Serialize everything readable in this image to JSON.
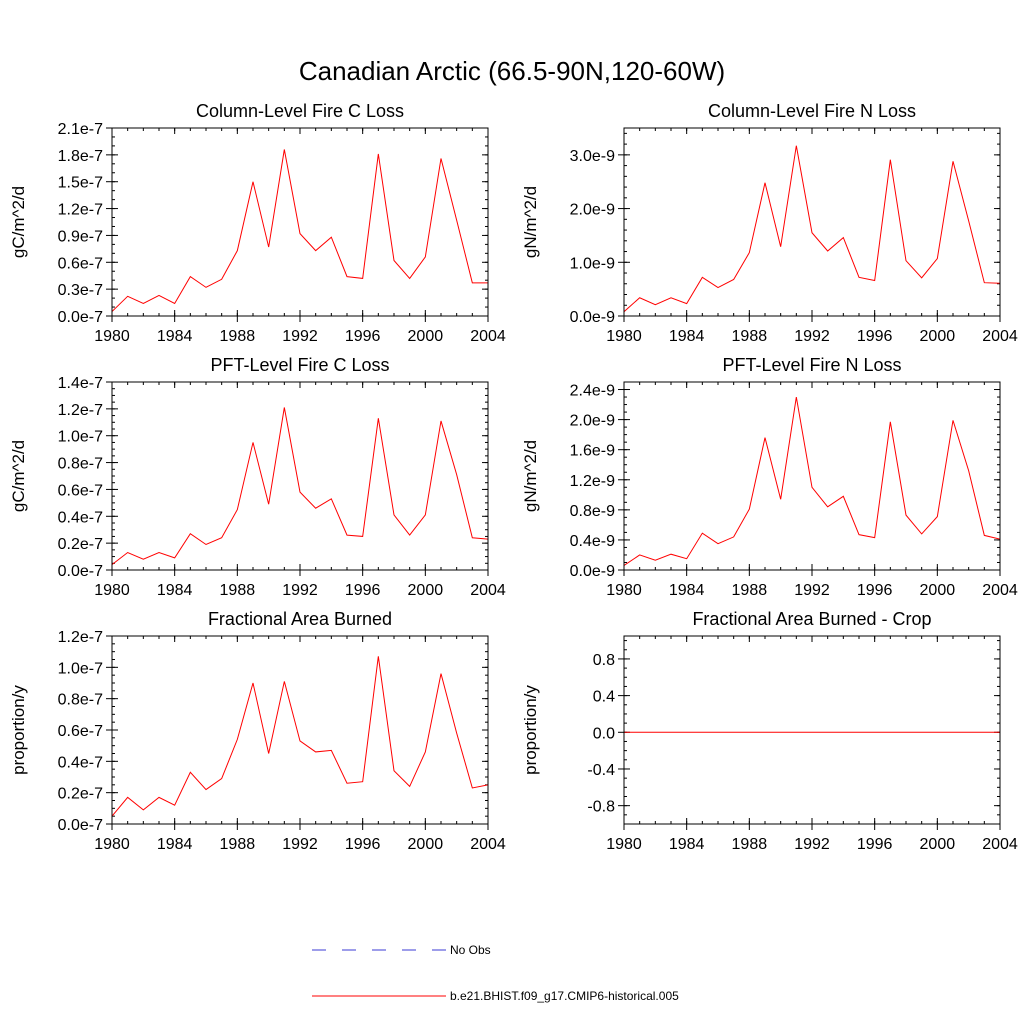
{
  "page_title": "Canadian Arctic (66.5-90N,120-60W)",
  "colors": {
    "model_line": "#ff0000",
    "obs_line": "#3b3bd6",
    "axes": "#000000"
  },
  "legend": {
    "obs_label": "No Obs",
    "model_label": "b.e21.BHIST.f09_g17.CMIP6-historical.005"
  },
  "chart_data": [
    {
      "type": "line",
      "title": "Column-Level Fire C Loss",
      "ylabel": "gC/m^2/d",
      "xlabel": "",
      "xlim": [
        1980,
        2004
      ],
      "ylim": [
        0,
        2.1e-07
      ],
      "x_ticks": [
        1980,
        1984,
        1988,
        1992,
        1996,
        2000,
        2004
      ],
      "x_tick_labels": [
        "1980",
        "1984",
        "1988",
        "1992",
        "1996",
        "2000",
        "2004"
      ],
      "y_ticks": [
        0,
        3e-08,
        6e-08,
        9e-08,
        1.2e-07,
        1.5e-07,
        1.8e-07,
        2.1e-07
      ],
      "y_tick_labels": [
        "0.0e-7",
        "0.3e-7",
        "0.6e-7",
        "0.9e-7",
        "1.2e-7",
        "1.5e-7",
        "1.8e-7",
        "2.1e-7"
      ],
      "y_minor_step": 1e-08,
      "x": [
        1980,
        1981,
        1982,
        1983,
        1984,
        1985,
        1986,
        1987,
        1988,
        1989,
        1990,
        1991,
        1992,
        1993,
        1994,
        1995,
        1996,
        1997,
        1998,
        1999,
        2000,
        2001,
        2002,
        2003,
        2004
      ],
      "series": [
        {
          "name": "b.e21.BHIST.f09_g17.CMIP6-historical.005",
          "values": [
            5e-09,
            2.2e-08,
            1.4e-08,
            2.3e-08,
            1.4e-08,
            4.4e-08,
            3.2e-08,
            4.1e-08,
            7.3e-08,
            1.5e-07,
            7.7e-08,
            1.86e-07,
            9.2e-08,
            7.3e-08,
            8.8e-08,
            4.4e-08,
            4.2e-08,
            1.81e-07,
            6.2e-08,
            4.2e-08,
            6.6e-08,
            1.76e-07,
            1.07e-07,
            3.7e-08,
            3.7e-08
          ]
        }
      ]
    },
    {
      "type": "line",
      "title": "Column-Level Fire N Loss",
      "ylabel": "gN/m^2/d",
      "xlabel": "",
      "xlim": [
        1980,
        2004
      ],
      "ylim": [
        0,
        3.5e-09
      ],
      "x_ticks": [
        1980,
        1984,
        1988,
        1992,
        1996,
        2000,
        2004
      ],
      "x_tick_labels": [
        "1980",
        "1984",
        "1988",
        "1992",
        "1996",
        "2000",
        "2004"
      ],
      "y_ticks": [
        0,
        1e-09,
        2e-09,
        3e-09
      ],
      "y_tick_labels": [
        "0.0e-9",
        "1.0e-9",
        "2.0e-9",
        "3.0e-9"
      ],
      "y_minor_step": 2e-10,
      "x": [
        1980,
        1981,
        1982,
        1983,
        1984,
        1985,
        1986,
        1987,
        1988,
        1989,
        1990,
        1991,
        1992,
        1993,
        1994,
        1995,
        1996,
        1997,
        1998,
        1999,
        2000,
        2001,
        2002,
        2003,
        2004
      ],
      "series": [
        {
          "name": "b.e21.BHIST.f09_g17.CMIP6-historical.005",
          "values": [
            8e-11,
            3.4e-10,
            2.1e-10,
            3.4e-10,
            2.3e-10,
            7.2e-10,
            5.3e-10,
            6.8e-10,
            1.18e-09,
            2.48e-09,
            1.29e-09,
            3.17e-09,
            1.55e-09,
            1.21e-09,
            1.46e-09,
            7.2e-10,
            6.6e-10,
            2.91e-09,
            1.03e-09,
            7.1e-10,
            1.07e-09,
            2.88e-09,
            1.77e-09,
            6.2e-10,
            6.1e-10
          ]
        }
      ]
    },
    {
      "type": "line",
      "title": "PFT-Level Fire C Loss",
      "ylabel": "gC/m^2/d",
      "xlabel": "",
      "xlim": [
        1980,
        2004
      ],
      "ylim": [
        0,
        1.4e-07
      ],
      "x_ticks": [
        1980,
        1984,
        1988,
        1992,
        1996,
        2000,
        2004
      ],
      "x_tick_labels": [
        "1980",
        "1984",
        "1988",
        "1992",
        "1996",
        "2000",
        "2004"
      ],
      "y_ticks": [
        0,
        2e-08,
        4e-08,
        6e-08,
        8e-08,
        1e-07,
        1.2e-07,
        1.4e-07
      ],
      "y_tick_labels": [
        "0.0e-7",
        "0.2e-7",
        "0.4e-7",
        "0.6e-7",
        "0.8e-7",
        "1.0e-7",
        "1.2e-7",
        "1.4e-7"
      ],
      "y_minor_step": 5e-09,
      "x": [
        1980,
        1981,
        1982,
        1983,
        1984,
        1985,
        1986,
        1987,
        1988,
        1989,
        1990,
        1991,
        1992,
        1993,
        1994,
        1995,
        1996,
        1997,
        1998,
        1999,
        2000,
        2001,
        2002,
        2003,
        2004
      ],
      "series": [
        {
          "name": "b.e21.BHIST.f09_g17.CMIP6-historical.005",
          "values": [
            4e-09,
            1.3e-08,
            8e-09,
            1.3e-08,
            9e-09,
            2.7e-08,
            1.9e-08,
            2.4e-08,
            4.5e-08,
            9.5e-08,
            4.9e-08,
            1.21e-07,
            5.8e-08,
            4.6e-08,
            5.3e-08,
            2.6e-08,
            2.5e-08,
            1.13e-07,
            4.1e-08,
            2.6e-08,
            4.1e-08,
            1.11e-07,
            7.1e-08,
            2.4e-08,
            2.3e-08
          ]
        }
      ]
    },
    {
      "type": "line",
      "title": "PFT-Level Fire N Loss",
      "ylabel": "gN/m^2/d",
      "xlabel": "",
      "xlim": [
        1980,
        2004
      ],
      "ylim": [
        0,
        2.5e-09
      ],
      "x_ticks": [
        1980,
        1984,
        1988,
        1992,
        1996,
        2000,
        2004
      ],
      "x_tick_labels": [
        "1980",
        "1984",
        "1988",
        "1992",
        "1996",
        "2000",
        "2004"
      ],
      "y_ticks": [
        0,
        4e-10,
        8e-10,
        1.2e-09,
        1.6e-09,
        2e-09,
        2.4e-09
      ],
      "y_tick_labels": [
        "0.0e-9",
        "0.4e-9",
        "0.8e-9",
        "1.2e-9",
        "1.6e-9",
        "2.0e-9",
        "2.4e-9"
      ],
      "y_minor_step": 1e-10,
      "x": [
        1980,
        1981,
        1982,
        1983,
        1984,
        1985,
        1986,
        1987,
        1988,
        1989,
        1990,
        1991,
        1992,
        1993,
        1994,
        1995,
        1996,
        1997,
        1998,
        1999,
        2000,
        2001,
        2002,
        2003,
        2004
      ],
      "series": [
        {
          "name": "b.e21.BHIST.f09_g17.CMIP6-historical.005",
          "values": [
            6e-11,
            2e-10,
            1.3e-10,
            2.1e-10,
            1.5e-10,
            4.9e-10,
            3.5e-10,
            4.4e-10,
            8.1e-10,
            1.76e-09,
            9.4e-10,
            2.3e-09,
            1.1e-09,
            8.4e-10,
            9.8e-10,
            4.7e-10,
            4.3e-10,
            1.97e-09,
            7.3e-10,
            4.8e-10,
            7.1e-10,
            1.99e-09,
            1.32e-09,
            4.6e-10,
            4.1e-10
          ]
        }
      ]
    },
    {
      "type": "line",
      "title": "Fractional Area Burned",
      "ylabel": "proportion/y",
      "xlabel": "",
      "xlim": [
        1980,
        2004
      ],
      "ylim": [
        0,
        1.2e-07
      ],
      "x_ticks": [
        1980,
        1984,
        1988,
        1992,
        1996,
        2000,
        2004
      ],
      "x_tick_labels": [
        "1980",
        "1984",
        "1988",
        "1992",
        "1996",
        "2000",
        "2004"
      ],
      "y_ticks": [
        0,
        2e-08,
        4e-08,
        6e-08,
        8e-08,
        1e-07,
        1.2e-07
      ],
      "y_tick_labels": [
        "0.0e-7",
        "0.2e-7",
        "0.4e-7",
        "0.6e-7",
        "0.8e-7",
        "1.0e-7",
        "1.2e-7"
      ],
      "y_minor_step": 5e-09,
      "x": [
        1980,
        1981,
        1982,
        1983,
        1984,
        1985,
        1986,
        1987,
        1988,
        1989,
        1990,
        1991,
        1992,
        1993,
        1994,
        1995,
        1996,
        1997,
        1998,
        1999,
        2000,
        2001,
        2002,
        2003,
        2004
      ],
      "series": [
        {
          "name": "b.e21.BHIST.f09_g17.CMIP6-historical.005",
          "values": [
            5e-09,
            1.7e-08,
            9e-09,
            1.7e-08,
            1.2e-08,
            3.3e-08,
            2.2e-08,
            2.9e-08,
            5.4e-08,
            9e-08,
            4.5e-08,
            9.1e-08,
            5.3e-08,
            4.6e-08,
            4.7e-08,
            2.6e-08,
            2.7e-08,
            1.07e-07,
            3.4e-08,
            2.4e-08,
            4.6e-08,
            9.6e-08,
            5.8e-08,
            2.3e-08,
            2.5e-08
          ]
        }
      ]
    },
    {
      "type": "line",
      "title": "Fractional Area Burned - Crop",
      "ylabel": "proportion/y",
      "xlabel": "",
      "xlim": [
        1980,
        2004
      ],
      "ylim": [
        -1.0,
        1.05
      ],
      "x_ticks": [
        1980,
        1984,
        1988,
        1992,
        1996,
        2000,
        2004
      ],
      "x_tick_labels": [
        "1980",
        "1984",
        "1988",
        "1992",
        "1996",
        "2000",
        "2004"
      ],
      "y_ticks": [
        -0.8,
        -0.4,
        0,
        0.4,
        0.8
      ],
      "y_tick_labels": [
        "-0.8",
        "-0.4",
        "0.0",
        "0.4",
        "0.8"
      ],
      "y_minor_step": 0.1,
      "x": [
        1980,
        1981,
        1982,
        1983,
        1984,
        1985,
        1986,
        1987,
        1988,
        1989,
        1990,
        1991,
        1992,
        1993,
        1994,
        1995,
        1996,
        1997,
        1998,
        1999,
        2000,
        2001,
        2002,
        2003,
        2004
      ],
      "series": [
        {
          "name": "b.e21.BHIST.f09_g17.CMIP6-historical.005",
          "values": [
            0,
            0,
            0,
            0,
            0,
            0,
            0,
            0,
            0,
            0,
            0,
            0,
            0,
            0,
            0,
            0,
            0,
            0,
            0,
            0,
            0,
            0,
            0,
            0,
            0
          ]
        }
      ]
    }
  ]
}
